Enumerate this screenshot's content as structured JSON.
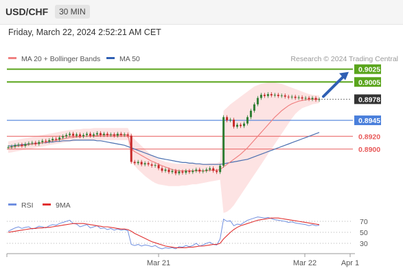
{
  "header": {
    "symbol": "USD/CHF",
    "timeframe": "30 MIN"
  },
  "datetime": "Friday, March 22, 2024 2:52:21 AM CET",
  "legend": {
    "ma20": "MA 20 + Bollinger Bands",
    "ma50": "MA 50",
    "credit": "Research © 2024 Trading Central",
    "rsi": "RSI",
    "rsi_ma": "9MA"
  },
  "colors": {
    "up": "#2e7d32",
    "down": "#c62828",
    "ma20": "#f08080",
    "ma50": "#4a6fb0",
    "band": "#fde3e3",
    "resistance": "#5aa51c",
    "pivot": "#4a7fdb",
    "support": "#e85a5a",
    "current": "#333333",
    "arrow": "#2f5fb3",
    "rsi": "#6f8fe0",
    "rsi_ma": "#e03030"
  },
  "chart_data": [
    {
      "type": "candlestick",
      "title": "USD/CHF",
      "x_ticks": [
        "Mar 21",
        "Mar 22",
        "Apr 1"
      ],
      "ylim": [
        0.883,
        0.903
      ],
      "levels": [
        {
          "label": "0.9025",
          "value": 0.9025,
          "kind": "resistance"
        },
        {
          "label": "0.9005",
          "value": 0.9005,
          "kind": "resistance"
        },
        {
          "label": "0.8978",
          "value": 0.8978,
          "kind": "current"
        },
        {
          "label": "0.8945",
          "value": 0.8945,
          "kind": "pivot"
        },
        {
          "label": "0.8920",
          "value": 0.892,
          "kind": "support"
        },
        {
          "label": "0.8900",
          "value": 0.89,
          "kind": "support"
        }
      ],
      "close": [
        0.8903,
        0.8904,
        0.8906,
        0.8907,
        0.8905,
        0.8908,
        0.8909,
        0.891,
        0.8908,
        0.8911,
        0.8913,
        0.8912,
        0.8914,
        0.8916,
        0.8915,
        0.8918,
        0.892,
        0.8922,
        0.8924,
        0.8921,
        0.8923,
        0.892,
        0.8922,
        0.8924,
        0.8921,
        0.8923,
        0.8925,
        0.8922,
        0.8924,
        0.8922,
        0.8923,
        0.8921,
        0.8924,
        0.8922,
        0.8923,
        0.8921,
        0.888,
        0.8878,
        0.888,
        0.8876,
        0.8878,
        0.8876,
        0.8874,
        0.8875,
        0.887,
        0.8866,
        0.8868,
        0.8864,
        0.8866,
        0.8862,
        0.8865,
        0.8863,
        0.8866,
        0.8864,
        0.8866,
        0.8868,
        0.8865,
        0.8866,
        0.8868,
        0.887,
        0.8866,
        0.8864,
        0.8874,
        0.895,
        0.8945,
        0.8946,
        0.8935,
        0.8938,
        0.8936,
        0.894,
        0.895,
        0.896,
        0.897,
        0.898,
        0.8985,
        0.8983,
        0.8986,
        0.8984,
        0.8985,
        0.8983,
        0.8984,
        0.8982,
        0.8981,
        0.8982,
        0.898,
        0.8981,
        0.8979,
        0.898,
        0.8978,
        0.898,
        0.8977,
        0.8978
      ],
      "ma20": [
        0.8902,
        0.8903,
        0.8904,
        0.8905,
        0.8905,
        0.8906,
        0.8907,
        0.8908,
        0.8908,
        0.8909,
        0.891,
        0.8911,
        0.8912,
        0.8913,
        0.8914,
        0.8915,
        0.8916,
        0.8917,
        0.8918,
        0.8918,
        0.8919,
        0.8919,
        0.892,
        0.892,
        0.8921,
        0.8921,
        0.8921,
        0.8922,
        0.8922,
        0.8922,
        0.8922,
        0.8922,
        0.8922,
        0.8922,
        0.8922,
        0.8922,
        0.89,
        0.8896,
        0.8893,
        0.889,
        0.8887,
        0.8884,
        0.8881,
        0.8879,
        0.8876,
        0.8874,
        0.8872,
        0.887,
        0.8868,
        0.8867,
        0.8866,
        0.8866,
        0.8866,
        0.8866,
        0.8866,
        0.8866,
        0.8866,
        0.8866,
        0.8866,
        0.8867,
        0.8867,
        0.8867,
        0.8868,
        0.8872,
        0.8876,
        0.888,
        0.8884,
        0.8888,
        0.8892,
        0.8897,
        0.8902,
        0.8908,
        0.8914,
        0.892,
        0.8926,
        0.8932,
        0.8938,
        0.8944,
        0.895,
        0.8955,
        0.896,
        0.8964,
        0.8968,
        0.8971,
        0.8973,
        0.8975,
        0.8976,
        0.8977,
        0.8978,
        0.8978,
        0.8978,
        0.8978
      ],
      "ma50": [
        0.8905,
        0.8905,
        0.8906,
        0.8906,
        0.8907,
        0.8907,
        0.8908,
        0.8908,
        0.8909,
        0.8909,
        0.891,
        0.891,
        0.8911,
        0.8911,
        0.8912,
        0.8912,
        0.8913,
        0.8913,
        0.8913,
        0.8914,
        0.8914,
        0.8914,
        0.8914,
        0.8914,
        0.8914,
        0.8914,
        0.8913,
        0.8913,
        0.8912,
        0.8911,
        0.891,
        0.8909,
        0.8908,
        0.8907,
        0.8906,
        0.8904,
        0.8902,
        0.89,
        0.8898,
        0.8896,
        0.8894,
        0.8892,
        0.889,
        0.8888,
        0.8886,
        0.8885,
        0.8884,
        0.8883,
        0.8882,
        0.8881,
        0.888,
        0.8879,
        0.8879,
        0.8878,
        0.8878,
        0.8877,
        0.8877,
        0.8876,
        0.8876,
        0.8876,
        0.8876,
        0.8876,
        0.8876,
        0.8877,
        0.8878,
        0.8879,
        0.888,
        0.8881,
        0.8882,
        0.8883,
        0.8884,
        0.8886,
        0.8888,
        0.889,
        0.8892,
        0.8894,
        0.8896,
        0.8898,
        0.89,
        0.8902,
        0.8904,
        0.8906,
        0.8908,
        0.891,
        0.8912,
        0.8914,
        0.8916,
        0.8918,
        0.892,
        0.8922,
        0.8924,
        0.8926
      ],
      "bb_upper": [
        0.8912,
        0.8913,
        0.8914,
        0.8915,
        0.8916,
        0.8917,
        0.8918,
        0.8919,
        0.892,
        0.8921,
        0.8922,
        0.8923,
        0.8924,
        0.8925,
        0.8926,
        0.8927,
        0.8928,
        0.8929,
        0.893,
        0.893,
        0.8931,
        0.8931,
        0.8932,
        0.8932,
        0.8932,
        0.8933,
        0.8933,
        0.8933,
        0.8933,
        0.8933,
        0.8933,
        0.8933,
        0.8933,
        0.8933,
        0.8933,
        0.8933,
        0.8922,
        0.8915,
        0.891,
        0.8905,
        0.89,
        0.8895,
        0.889,
        0.8887,
        0.8884,
        0.8882,
        0.888,
        0.8879,
        0.8878,
        0.8877,
        0.8877,
        0.8877,
        0.8877,
        0.8877,
        0.8877,
        0.8877,
        0.8877,
        0.8877,
        0.8877,
        0.8878,
        0.8878,
        0.8878,
        0.888,
        0.896,
        0.8965,
        0.897,
        0.8974,
        0.8978,
        0.8982,
        0.8986,
        0.899,
        0.8994,
        0.8998,
        0.9,
        0.9002,
        0.9003,
        0.9004,
        0.9004,
        0.9004,
        0.9003,
        0.9002,
        0.9,
        0.8998,
        0.8996,
        0.8994,
        0.8992,
        0.899,
        0.8988,
        0.8986,
        0.8985,
        0.8984,
        0.8984
      ],
      "bb_lower": [
        0.8894,
        0.8895,
        0.8896,
        0.8897,
        0.8898,
        0.8899,
        0.89,
        0.8901,
        0.8902,
        0.8903,
        0.8904,
        0.8905,
        0.8906,
        0.8907,
        0.8908,
        0.8909,
        0.891,
        0.8911,
        0.8912,
        0.8912,
        0.8913,
        0.8913,
        0.8914,
        0.8914,
        0.8914,
        0.8914,
        0.8914,
        0.8914,
        0.8914,
        0.8914,
        0.8914,
        0.8914,
        0.8914,
        0.8914,
        0.8914,
        0.8914,
        0.888,
        0.8874,
        0.8868,
        0.8863,
        0.8858,
        0.8854,
        0.885,
        0.8847,
        0.8845,
        0.8844,
        0.8843,
        0.8842,
        0.8842,
        0.8842,
        0.8842,
        0.8843,
        0.8843,
        0.8844,
        0.8845,
        0.8845,
        0.8846,
        0.8847,
        0.8848,
        0.8849,
        0.885,
        0.8851,
        0.8852,
        0.88,
        0.8802,
        0.8806,
        0.8812,
        0.882,
        0.8828,
        0.8836,
        0.8844,
        0.8852,
        0.886,
        0.8868,
        0.8876,
        0.8884,
        0.8892,
        0.89,
        0.8908,
        0.8916,
        0.8924,
        0.8932,
        0.894,
        0.8948,
        0.8955,
        0.896,
        0.8964,
        0.8966,
        0.8968,
        0.897,
        0.8971,
        0.8972
      ]
    },
    {
      "type": "line",
      "title": "RSI",
      "y_ticks": [
        "70",
        "50",
        "30"
      ],
      "ylim": [
        15,
        85
      ],
      "series": [
        {
          "name": "RSI",
          "values": [
            52,
            55,
            58,
            60,
            57,
            59,
            60,
            56,
            58,
            61,
            60,
            58,
            62,
            64,
            63,
            66,
            68,
            70,
            72,
            66,
            65,
            60,
            62,
            64,
            58,
            60,
            62,
            57,
            58,
            55,
            57,
            54,
            56,
            54,
            55,
            53,
            28,
            26,
            28,
            25,
            27,
            26,
            24,
            26,
            22,
            20,
            22,
            21,
            22,
            20,
            24,
            23,
            26,
            24,
            26,
            30,
            25,
            27,
            30,
            32,
            28,
            27,
            38,
            74,
            70,
            71,
            62,
            65,
            64,
            68,
            72,
            74,
            76,
            78,
            77,
            76,
            77,
            75,
            73,
            72,
            71,
            70,
            68,
            69,
            67,
            66,
            65,
            64,
            62,
            64,
            62,
            63
          ]
        },
        {
          "name": "9MA",
          "values": [
            50,
            51,
            52,
            53,
            54,
            55,
            56,
            57,
            57,
            58,
            58,
            59,
            59,
            60,
            61,
            62,
            63,
            64,
            65,
            66,
            66,
            66,
            66,
            65,
            64,
            63,
            62,
            61,
            60,
            60,
            59,
            58,
            57,
            56,
            56,
            55,
            52,
            48,
            45,
            42,
            39,
            36,
            33,
            31,
            29,
            27,
            25,
            24,
            23,
            22,
            22,
            22,
            22,
            23,
            23,
            24,
            25,
            25,
            26,
            27,
            28,
            28,
            30,
            38,
            44,
            50,
            55,
            59,
            62,
            64,
            66,
            68,
            70,
            72,
            73,
            74,
            75,
            76,
            76,
            76,
            75,
            74,
            73,
            72,
            71,
            70,
            69,
            68,
            67,
            66,
            65,
            64
          ]
        }
      ]
    }
  ]
}
